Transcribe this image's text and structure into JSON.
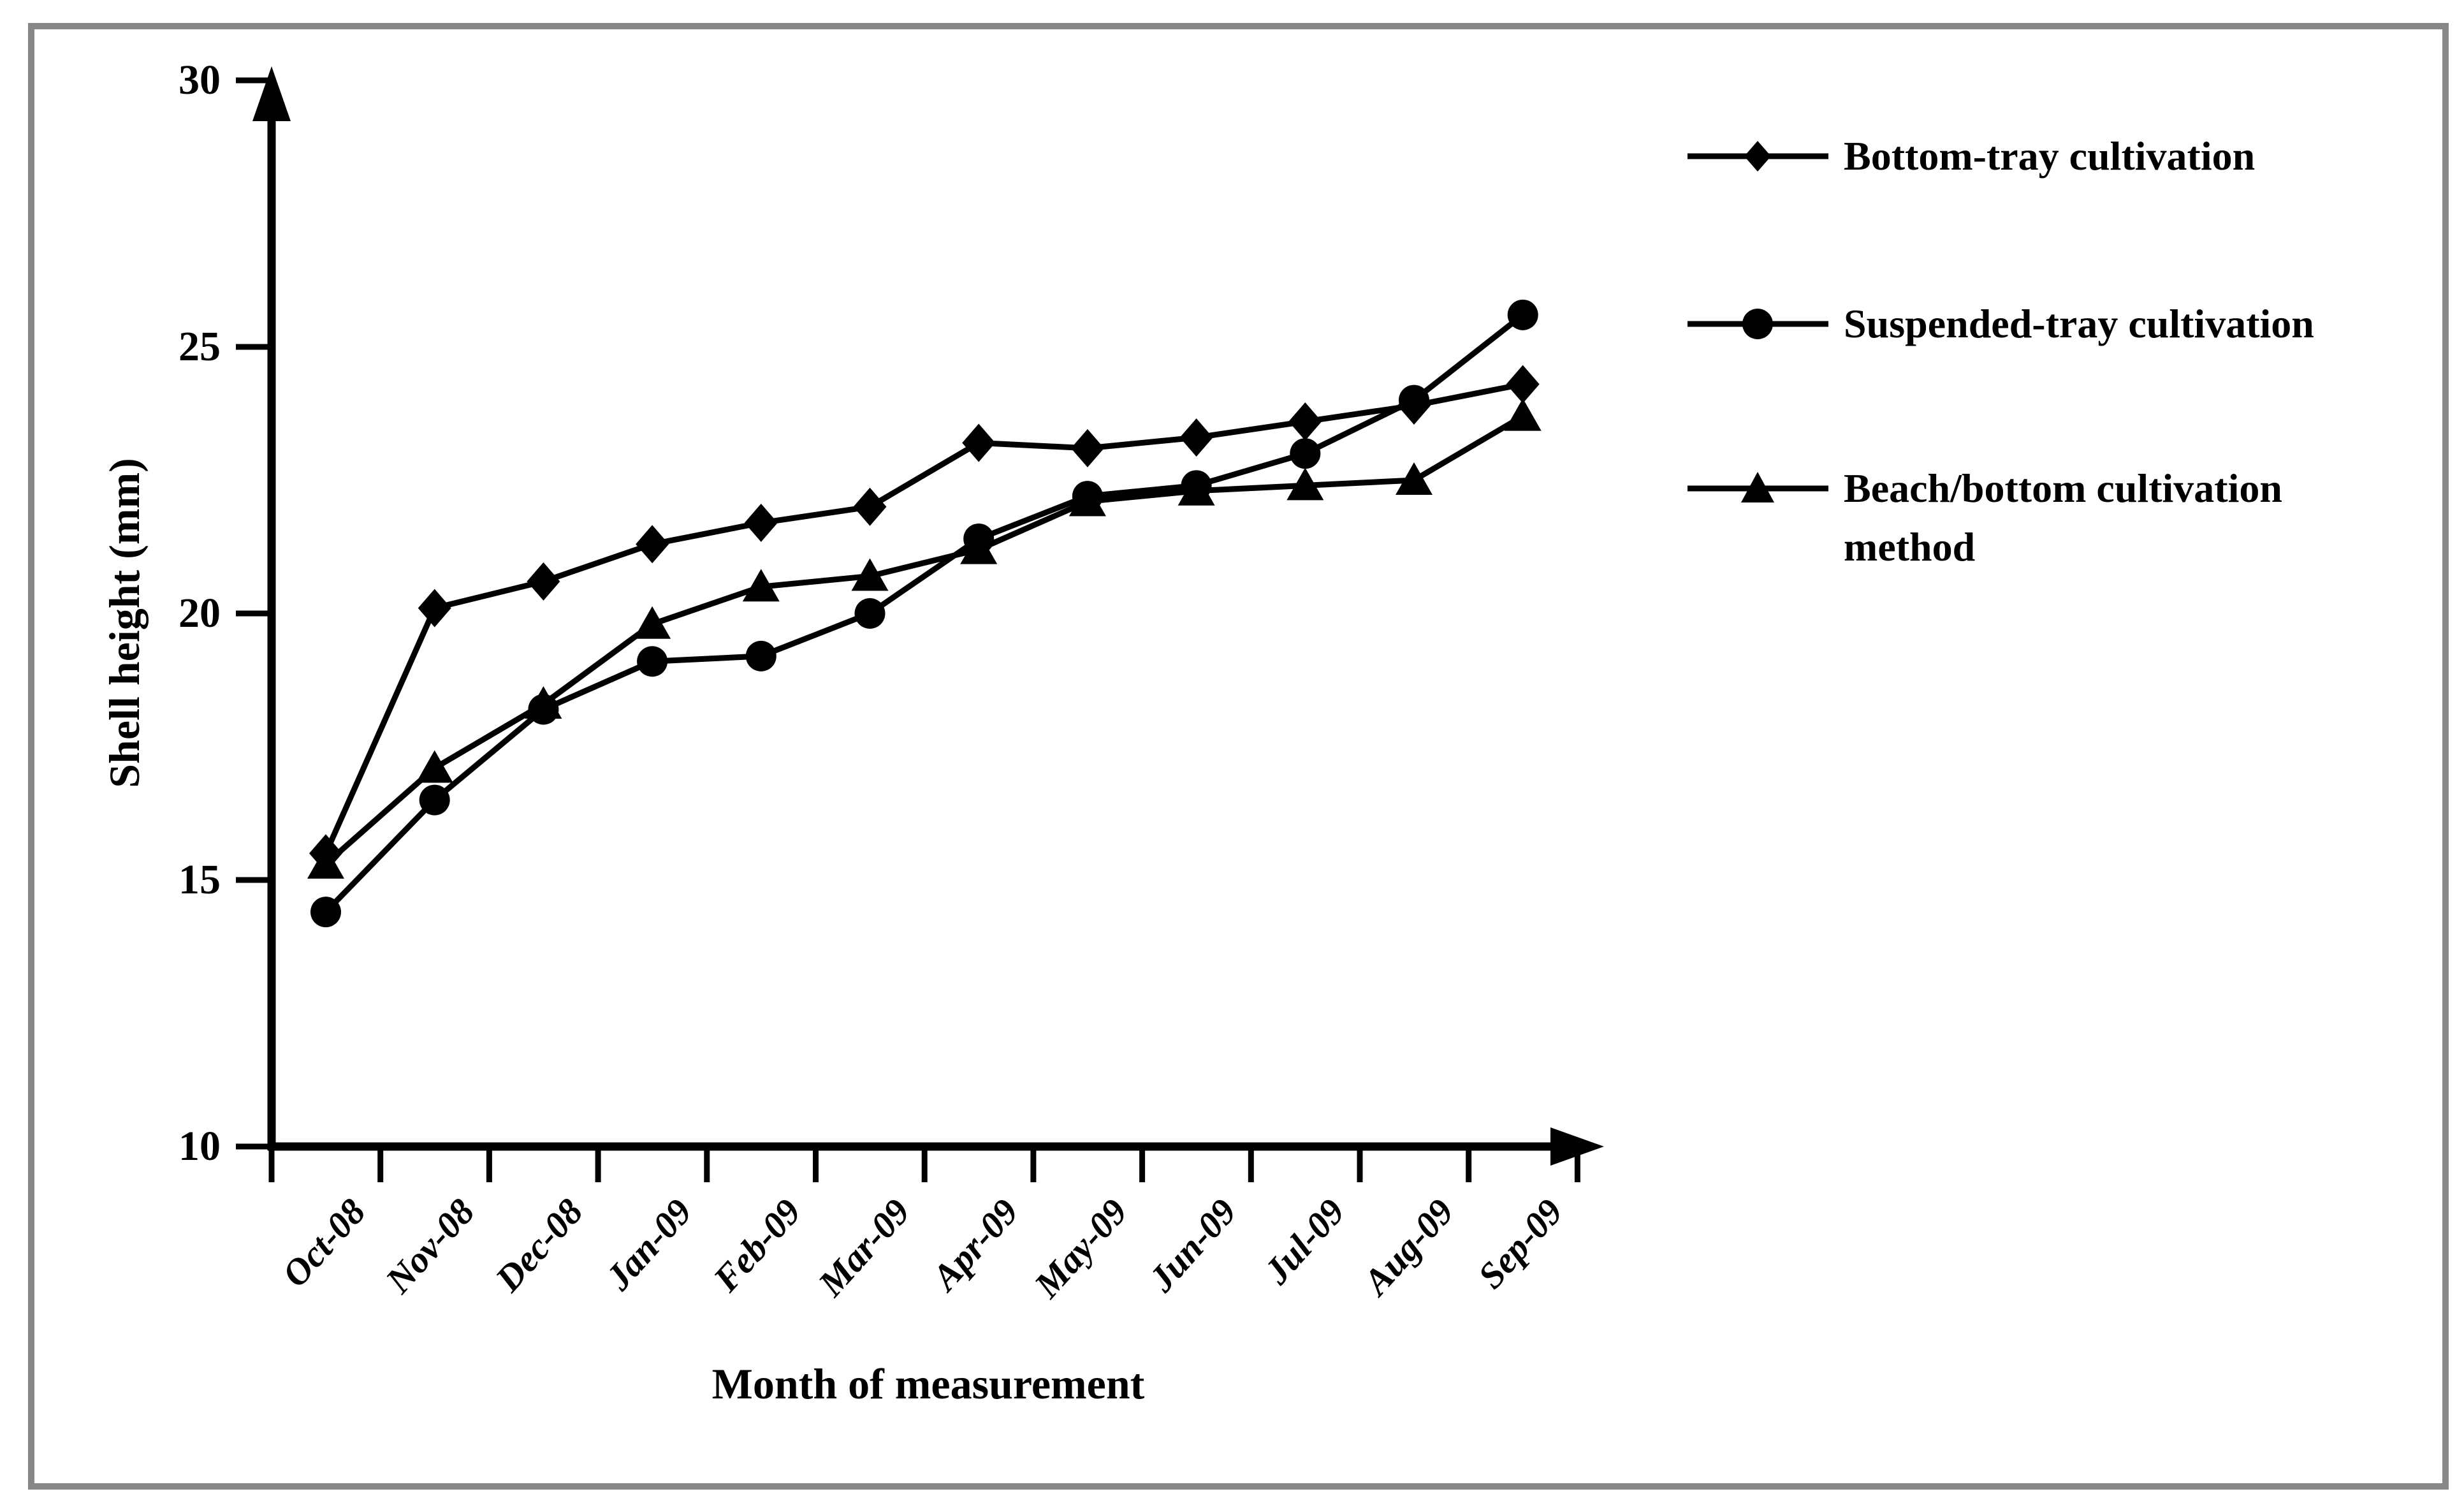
{
  "figure": {
    "background": "#ffffff",
    "border_color": "#878787",
    "line_color": "#000000"
  },
  "chart_data": {
    "type": "line",
    "title": "",
    "xlabel": "Month of measurement",
    "ylabel": "Shell height (mm)",
    "ylim": [
      10,
      30
    ],
    "y_ticks": [
      "10",
      "15",
      "20",
      "25",
      "30"
    ],
    "grid": false,
    "legend_position": "right",
    "categories": [
      "Oct-08",
      "Nov-08",
      "Dec-08",
      "Jan-09",
      "Feb-09",
      "Mar-09",
      "Apr-09",
      "May-09",
      "Jun-09",
      "Jul-09",
      "Aug-09",
      "Sep-09"
    ],
    "series": [
      {
        "name": "Bottom-tray cultivation",
        "marker": "diamond",
        "values": [
          15.5,
          20.1,
          20.6,
          21.3,
          21.7,
          22.0,
          23.2,
          23.1,
          23.3,
          23.6,
          23.9,
          24.3
        ]
      },
      {
        "name": "Suspended-tray cultivation",
        "marker": "circle",
        "values": [
          14.4,
          16.5,
          18.2,
          19.1,
          19.2,
          20.0,
          21.4,
          22.2,
          22.4,
          23.0,
          24.0,
          25.6
        ]
      },
      {
        "name": "Beach/bottom cultivation method",
        "marker": "triangle",
        "values": [
          15.3,
          17.1,
          18.3,
          19.8,
          20.5,
          20.7,
          21.2,
          22.1,
          22.3,
          22.4,
          22.5,
          23.7
        ]
      }
    ]
  }
}
